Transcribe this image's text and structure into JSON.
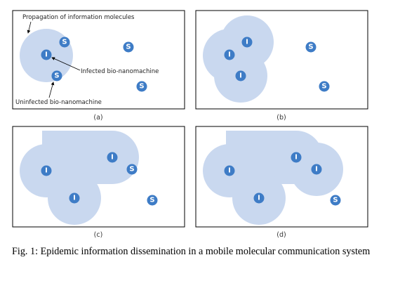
{
  "panels": [
    {
      "id": "a",
      "label": "(a)",
      "annotations": [
        {
          "key": "propagation",
          "text": "Propagation of information molecules"
        },
        {
          "key": "infected",
          "text": "Infected bio-nanomachine"
        },
        {
          "key": "uninfected",
          "text": "Uninfected bio-nanomachine"
        }
      ],
      "nodes": [
        {
          "type": "S",
          "letter": "S"
        },
        {
          "type": "I",
          "letter": "I"
        },
        {
          "type": "S",
          "letter": "S"
        },
        {
          "type": "S",
          "letter": "S"
        },
        {
          "type": "S",
          "letter": "S"
        }
      ]
    },
    {
      "id": "b",
      "label": "(b)",
      "nodes": [
        {
          "type": "I",
          "letter": "I"
        },
        {
          "type": "I",
          "letter": "I"
        },
        {
          "type": "I",
          "letter": "I"
        },
        {
          "type": "S",
          "letter": "S"
        },
        {
          "type": "S",
          "letter": "S"
        }
      ]
    },
    {
      "id": "c",
      "label": "(c)",
      "nodes": [
        {
          "type": "I",
          "letter": "I"
        },
        {
          "type": "I",
          "letter": "I"
        },
        {
          "type": "S",
          "letter": "S"
        },
        {
          "type": "I",
          "letter": "I"
        },
        {
          "type": "S",
          "letter": "S"
        }
      ]
    },
    {
      "id": "d",
      "label": "(d)",
      "nodes": [
        {
          "type": "I",
          "letter": "I"
        },
        {
          "type": "I",
          "letter": "I"
        },
        {
          "type": "I",
          "letter": "I"
        },
        {
          "type": "I",
          "letter": "I"
        },
        {
          "type": "S",
          "letter": "S"
        }
      ]
    }
  ],
  "caption": "Fig. 1: Epidemic information dissemination in a mobile molecular communication system",
  "colors": {
    "infected_node": "#3e7cc6",
    "uninfected_node": "#3e7cc6",
    "propagation_cloud": "#c9d8ef"
  }
}
